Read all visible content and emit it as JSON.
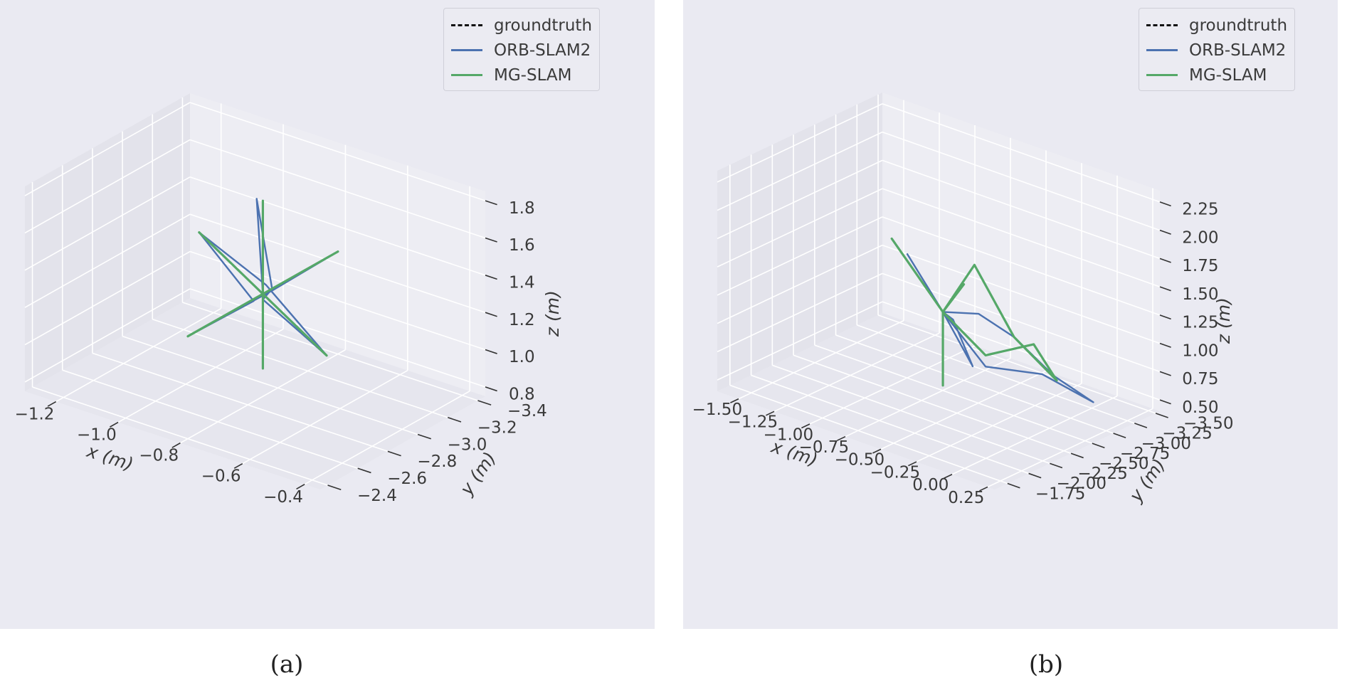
{
  "colors": {
    "background": "#eaeaf2",
    "pane_left": "#e3e3eb",
    "pane_right": "#ededf3",
    "pane_floor": "#e6e6ee",
    "grid": "#ffffff",
    "groundtruth": "#111111",
    "orb_slam2": "#4c72b0",
    "mg_slam": "#55a868"
  },
  "legend": {
    "items": [
      {
        "label": "groundtruth",
        "style": "dashed",
        "color": "#111111"
      },
      {
        "label": "ORB-SLAM2",
        "style": "solid",
        "color": "#4c72b0"
      },
      {
        "label": "MG-SLAM",
        "style": "solid",
        "color": "#55a868"
      }
    ]
  },
  "chart_data": [
    {
      "type": "line3d",
      "panel_caption": "(a)",
      "xlabel": "x (m)",
      "ylabel": "y (m)",
      "zlabel": "z (m)",
      "grid": true,
      "legend_position": "top-right",
      "xlim": [
        -1.3,
        -0.35
      ],
      "ylim": [
        -3.45,
        -2.35
      ],
      "zlim": [
        0.75,
        1.85
      ],
      "x_ticks": [
        "−1.2",
        "−1.0",
        "−0.8",
        "−0.6",
        "−0.4"
      ],
      "y_ticks": [
        "−2.4",
        "−2.6",
        "−2.8",
        "−3.0",
        "−3.2",
        "−3.4"
      ],
      "z_ticks": [
        "0.8",
        "1.0",
        "1.2",
        "1.4",
        "1.6",
        "1.8"
      ],
      "series": [
        {
          "name": "groundtruth",
          "style": "dashed",
          "x": [
            -0.8,
            -0.8,
            -0.8,
            -0.8,
            -0.8,
            -0.45,
            -0.8,
            -1.15,
            -0.8,
            -0.8,
            -0.8,
            -0.8,
            -0.8
          ],
          "y": [
            -2.9,
            -2.9,
            -2.9,
            -2.9,
            -2.9,
            -2.6,
            -2.9,
            -3.2,
            -2.9,
            -2.4,
            -2.9,
            -3.4,
            -2.9
          ],
          "z": [
            0.9,
            1.3,
            1.8,
            1.3,
            1.3,
            1.3,
            1.3,
            1.3,
            1.3,
            1.3,
            1.3,
            1.3,
            1.3
          ]
        },
        {
          "name": "ORB-SLAM2",
          "style": "solid",
          "x": [
            -0.8,
            -0.8,
            -0.82,
            -0.78,
            -0.8,
            -0.45,
            -0.8,
            -1.15,
            -0.82,
            -0.8,
            -0.78,
            -0.8,
            -0.8
          ],
          "y": [
            -2.9,
            -2.9,
            -2.9,
            -2.92,
            -2.9,
            -2.6,
            -2.92,
            -3.2,
            -2.88,
            -2.4,
            -2.92,
            -3.4,
            -2.9
          ],
          "z": [
            0.9,
            1.3,
            1.8,
            1.33,
            1.27,
            1.3,
            1.34,
            1.3,
            1.26,
            1.3,
            1.32,
            1.3,
            1.3
          ]
        },
        {
          "name": "MG-SLAM",
          "style": "solid",
          "x": [
            -0.8,
            -0.8,
            -0.8,
            -0.8,
            -0.8,
            -0.45,
            -0.8,
            -1.15,
            -0.8,
            -0.8,
            -0.8,
            -0.8,
            -0.8
          ],
          "y": [
            -2.9,
            -2.9,
            -2.9,
            -2.9,
            -2.9,
            -2.6,
            -2.9,
            -3.2,
            -2.9,
            -2.4,
            -2.9,
            -3.4,
            -2.9
          ],
          "z": [
            0.9,
            1.3,
            1.8,
            1.3,
            1.3,
            1.3,
            1.3,
            1.3,
            1.3,
            1.3,
            1.3,
            1.3,
            1.3
          ]
        }
      ]
    },
    {
      "type": "line3d",
      "panel_caption": "(b)",
      "xlabel": "x (m)",
      "ylabel": "y (m)",
      "zlabel": "z (m)",
      "grid": true,
      "legend_position": "top-right",
      "xlim": [
        -1.65,
        0.3
      ],
      "ylim": [
        -3.55,
        -1.6
      ],
      "zlim": [
        0.4,
        2.35
      ],
      "x_ticks": [
        "−1.50",
        "−1.25",
        "−1.00",
        "−0.75",
        "−0.50",
        "−0.25",
        "0.00",
        "0.25"
      ],
      "y_ticks": [
        "−1.75",
        "−2.00",
        "−2.25",
        "−2.50",
        "−2.75",
        "−3.00",
        "−3.25",
        "−3.50"
      ],
      "z_ticks": [
        "0.50",
        "0.75",
        "1.00",
        "1.25",
        "1.50",
        "1.75",
        "2.00",
        "2.25"
      ],
      "series": [
        {
          "name": "groundtruth",
          "style": "dashed",
          "x": [
            -0.6,
            -0.6,
            -0.9,
            -0.6,
            -0.2,
            -0.1,
            0.2,
            -0.2,
            -0.3,
            -0.6,
            -0.75
          ],
          "y": [
            -2.5,
            -2.5,
            -2.4,
            -2.5,
            -2.2,
            -2.5,
            -2.5,
            -2.9,
            -2.5,
            -2.5,
            -3.0
          ],
          "z": [
            0.6,
            1.25,
            1.8,
            1.25,
            1.95,
            1.25,
            1.0,
            1.0,
            1.0,
            1.25,
            1.25
          ]
        },
        {
          "name": "ORB-SLAM2",
          "style": "solid",
          "x": [
            -0.6,
            -0.6,
            -0.85,
            -0.6,
            -0.2,
            -0.1,
            0.15,
            0.1,
            -0.2,
            -0.3,
            -0.6,
            -0.45,
            -0.35,
            -0.6
          ],
          "y": [
            -2.5,
            -2.5,
            -2.5,
            -2.5,
            -2.25,
            -2.5,
            -2.55,
            -3.1,
            -3.0,
            -2.5,
            -2.5,
            -2.6,
            -2.2,
            -2.5
          ],
          "z": [
            0.6,
            1.25,
            1.65,
            1.25,
            1.5,
            1.25,
            1.0,
            0.55,
            0.7,
            0.9,
            1.25,
            0.8,
            1.4,
            1.25
          ]
        },
        {
          "name": "MG-SLAM",
          "style": "solid",
          "x": [
            -0.6,
            -0.6,
            -0.9,
            -0.6,
            -0.2,
            -0.1,
            0.2,
            -0.2,
            -0.3,
            -0.6,
            -0.75
          ],
          "y": [
            -2.5,
            -2.5,
            -2.4,
            -2.5,
            -2.2,
            -2.5,
            -2.5,
            -2.9,
            -2.5,
            -2.5,
            -3.0
          ],
          "z": [
            0.6,
            1.25,
            1.8,
            1.25,
            1.95,
            1.25,
            1.0,
            1.0,
            1.0,
            1.25,
            1.25
          ]
        }
      ]
    }
  ]
}
